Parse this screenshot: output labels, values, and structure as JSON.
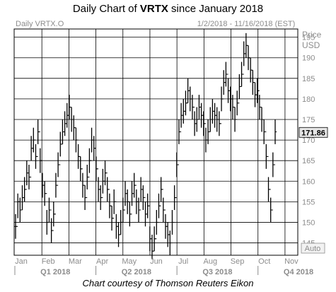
{
  "header": {
    "title_prefix": "Daily Chart of ",
    "ticker": "VRTX",
    "title_suffix": " since January 2018"
  },
  "footer": {
    "credit": "Chart courtesy of Thomson Reuters Eikon"
  },
  "chart_data": {
    "type": "ohlc",
    "instrument_label": "Daily VRTX.O",
    "date_range_label": "1/2/2018 - 11/16/2018 (EST)",
    "axis_title": [
      "Price",
      "USD"
    ],
    "ylim": [
      142,
      197
    ],
    "yticks": [
      145,
      150,
      155,
      160,
      165,
      170,
      175,
      180,
      185,
      190,
      195
    ],
    "last_price_label": "171.86",
    "last_price": 171.86,
    "autoscale_label": "Auto",
    "months": [
      "Jan",
      "Feb",
      "Mar",
      "Apr",
      "May",
      "Jun",
      "Jul",
      "Aug",
      "Sep",
      "Oct",
      "Nov"
    ],
    "quarters": [
      "Q1 2018",
      "Q2 2018",
      "Q3 2018",
      "Q4 2018"
    ],
    "grid": true,
    "colors": {
      "bars": "#000000",
      "grid": "#000000",
      "axis_text": "#8c8c8c",
      "price_tag_bg": "#e6e6e6"
    },
    "closes": [
      149.0,
      155.0,
      153.0,
      156.0,
      158.0,
      162.0,
      161.0,
      168.0,
      170.0,
      166.0,
      172.0,
      165.0,
      159.0,
      157.0,
      150.0,
      153.0,
      148.0,
      152.0,
      159.0,
      164.0,
      169.0,
      172.0,
      174.0,
      176.0,
      178.0,
      175.0,
      173.0,
      170.0,
      166.0,
      163.0,
      159.0,
      156.0,
      161.0,
      165.0,
      170.0,
      168.0,
      163.0,
      158.0,
      156.0,
      160.0,
      162.0,
      158.0,
      154.0,
      151.0,
      155.0,
      149.0,
      147.0,
      150.0,
      153.0,
      157.0,
      155.0,
      152.0,
      157.0,
      159.0,
      155.0,
      153.0,
      158.0,
      156.0,
      152.0,
      154.0,
      146.0,
      143.0,
      146.0,
      150.0,
      154.0,
      158.0,
      153.0,
      149.0,
      147.0,
      145.0,
      150.0,
      156.0,
      164.0,
      172.0,
      176.0,
      177.0,
      179.0,
      182.0,
      180.0,
      178.0,
      174.0,
      175.0,
      178.0,
      176.0,
      174.0,
      170.0,
      172.0,
      175.0,
      177.0,
      176.0,
      175.0,
      174.0,
      180.0,
      184.0,
      186.0,
      182.0,
      180.0,
      178.0,
      175.0,
      179.0,
      183.0,
      186.0,
      191.0,
      193.0,
      190.0,
      187.0,
      184.0,
      181.0,
      182.0,
      178.0,
      175.0,
      172.0,
      166.0,
      158.0,
      153.0,
      164.0,
      172.0
    ],
    "bar_ranges": [
      [
        146,
        152
      ],
      [
        151,
        157
      ],
      [
        150,
        156
      ],
      [
        153,
        159
      ],
      [
        155,
        161
      ],
      [
        159,
        165
      ],
      [
        158,
        164
      ],
      [
        165,
        171
      ],
      [
        167,
        173
      ],
      [
        163,
        169
      ],
      [
        169,
        175
      ],
      [
        162,
        168
      ],
      [
        156,
        162
      ],
      [
        154,
        160
      ],
      [
        147,
        153
      ],
      [
        150,
        156
      ],
      [
        145,
        151
      ],
      [
        149,
        155
      ],
      [
        156,
        162
      ],
      [
        161,
        167
      ],
      [
        166,
        172
      ],
      [
        169,
        175
      ],
      [
        171,
        177
      ],
      [
        173,
        179
      ],
      [
        175,
        181
      ],
      [
        172,
        178
      ],
      [
        170,
        176
      ],
      [
        167,
        173
      ],
      [
        163,
        169
      ],
      [
        160,
        166
      ],
      [
        156,
        162
      ],
      [
        153,
        159
      ],
      [
        158,
        164
      ],
      [
        162,
        168
      ],
      [
        167,
        173
      ],
      [
        165,
        171
      ],
      [
        160,
        166
      ],
      [
        155,
        161
      ],
      [
        153,
        159
      ],
      [
        157,
        163
      ],
      [
        159,
        165
      ],
      [
        155,
        161
      ],
      [
        151,
        157
      ],
      [
        148,
        154
      ],
      [
        152,
        158
      ],
      [
        146,
        152
      ],
      [
        144,
        150
      ],
      [
        147,
        153
      ],
      [
        150,
        156
      ],
      [
        154,
        160
      ],
      [
        152,
        158
      ],
      [
        149,
        155
      ],
      [
        154,
        160
      ],
      [
        156,
        162
      ],
      [
        152,
        158
      ],
      [
        150,
        156
      ],
      [
        155,
        161
      ],
      [
        153,
        159
      ],
      [
        149,
        155
      ],
      [
        151,
        157
      ],
      [
        143,
        149
      ],
      [
        141,
        147
      ],
      [
        143,
        149
      ],
      [
        147,
        153
      ],
      [
        151,
        157
      ],
      [
        155,
        161
      ],
      [
        150,
        156
      ],
      [
        146,
        152
      ],
      [
        144,
        150
      ],
      [
        142,
        148
      ],
      [
        147,
        153
      ],
      [
        153,
        159
      ],
      [
        161,
        167
      ],
      [
        169,
        175
      ],
      [
        173,
        179
      ],
      [
        174,
        180
      ],
      [
        176,
        182
      ],
      [
        179,
        185
      ],
      [
        177,
        183
      ],
      [
        175,
        181
      ],
      [
        171,
        177
      ],
      [
        172,
        178
      ],
      [
        175,
        181
      ],
      [
        173,
        179
      ],
      [
        171,
        177
      ],
      [
        167,
        173
      ],
      [
        169,
        175
      ],
      [
        172,
        178
      ],
      [
        174,
        180
      ],
      [
        173,
        179
      ],
      [
        172,
        178
      ],
      [
        171,
        177
      ],
      [
        177,
        183
      ],
      [
        181,
        187
      ],
      [
        183,
        189
      ],
      [
        179,
        185
      ],
      [
        177,
        183
      ],
      [
        175,
        181
      ],
      [
        172,
        178
      ],
      [
        176,
        182
      ],
      [
        180,
        186
      ],
      [
        183,
        189
      ],
      [
        188,
        194
      ],
      [
        190,
        196
      ],
      [
        187,
        193
      ],
      [
        184,
        190
      ],
      [
        181,
        187
      ],
      [
        178,
        184
      ],
      [
        179,
        185
      ],
      [
        175,
        181
      ],
      [
        172,
        178
      ],
      [
        169,
        175
      ],
      [
        163,
        169
      ],
      [
        155,
        161
      ],
      [
        150,
        156
      ],
      [
        161,
        167
      ],
      [
        169,
        175
      ]
    ]
  }
}
